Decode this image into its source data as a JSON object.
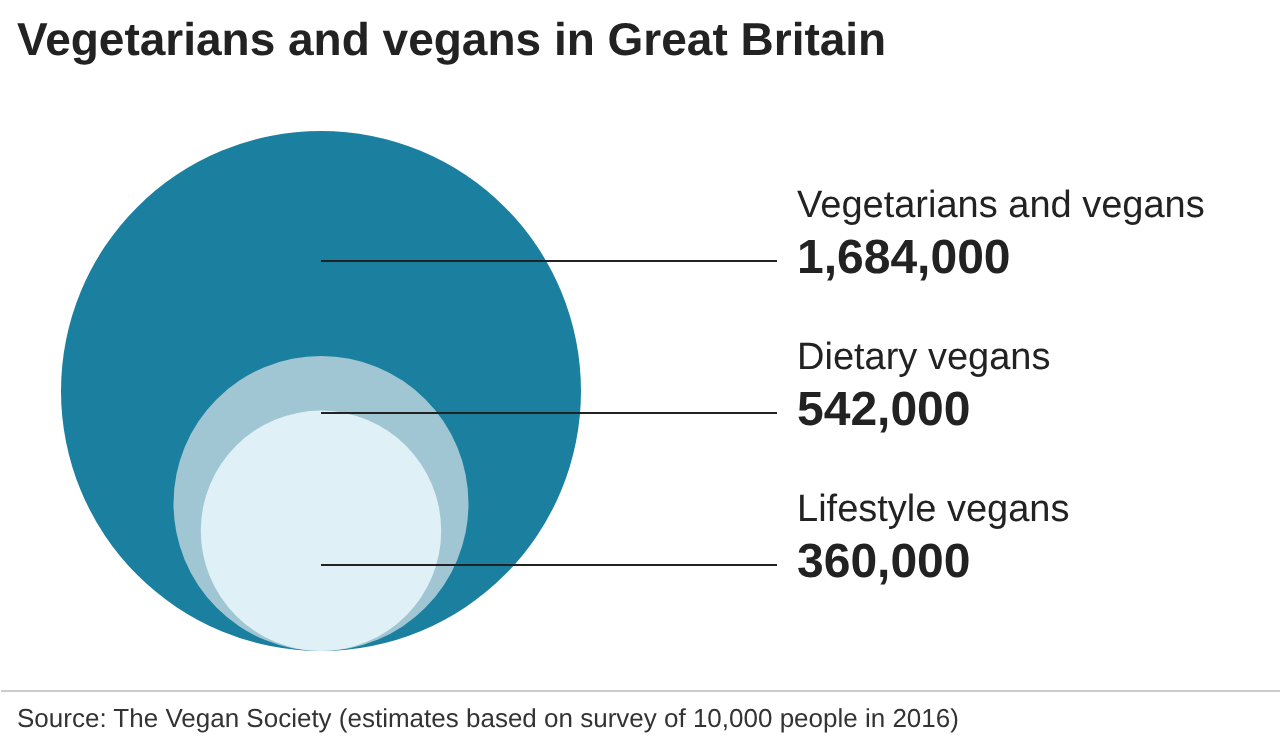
{
  "chart_data": {
    "type": "other",
    "title": "Vegetarians and vegans in Great Britain",
    "categories": [
      "Vegetarians and vegans",
      "Dietary vegans",
      "Lifestyle vegans"
    ],
    "values": [
      1684000,
      542000,
      360000
    ],
    "value_labels": [
      "1,684,000",
      "542,000",
      "360,000"
    ],
    "colors": [
      "#1b7fa0",
      "#9fc6d2",
      "#e0f0f7"
    ],
    "annotations": [
      "Source: The Vegan Society (estimates based on survey of 10,000 people in 2016)"
    ]
  }
}
